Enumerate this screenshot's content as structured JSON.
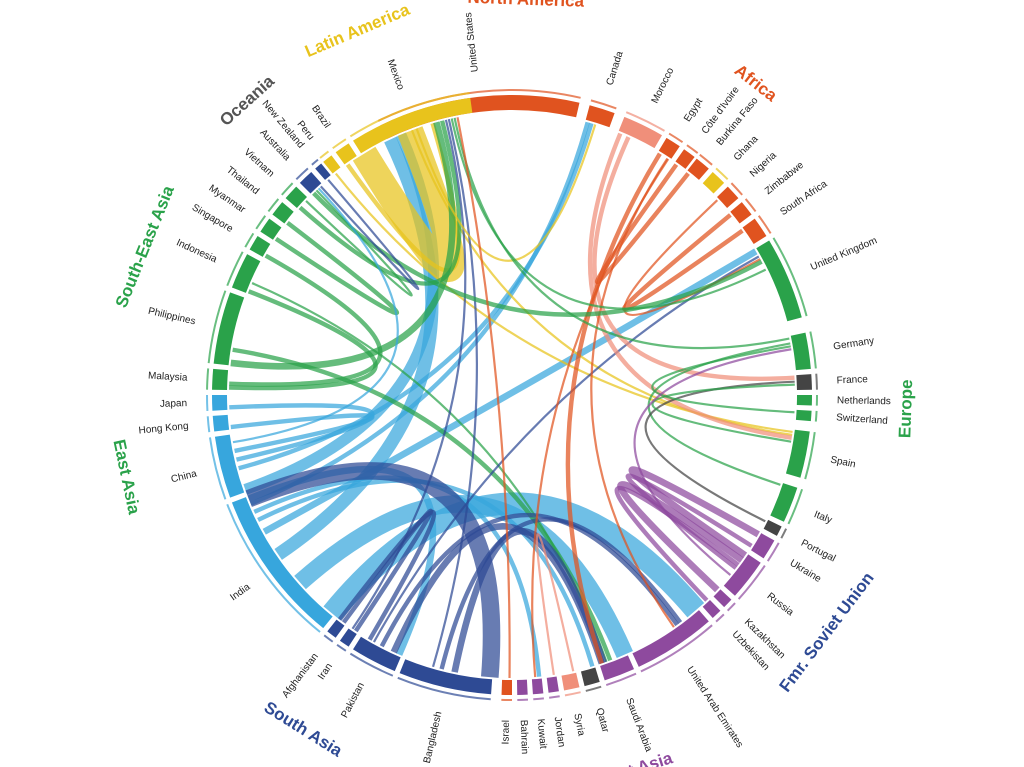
{
  "regions": [
    {
      "name": "North America",
      "color": "#e0531f"
    },
    {
      "name": "Africa",
      "color": "#e0531f"
    },
    {
      "name": "Europe",
      "color": "#2aa24a"
    },
    {
      "name": "Fmr. Soviet Union",
      "color": "#2e4a94"
    },
    {
      "name": "West Asia",
      "color": "#8e4a9e"
    },
    {
      "name": "South Asia",
      "color": "#2e4a94"
    },
    {
      "name": "East Asia",
      "color": "#2aa24a"
    },
    {
      "name": "South-East Asia",
      "color": "#2aa24a"
    },
    {
      "name": "Oceania",
      "color": "#555555"
    },
    {
      "name": "Latin America",
      "color": "#e8c31c"
    }
  ],
  "countries": [
    {
      "name": "United States",
      "color": "#e0531f"
    },
    {
      "name": "Canada",
      "color": "#e0531f"
    },
    {
      "name": "Morocco",
      "color": "#f08f7a"
    },
    {
      "name": "Egypt",
      "color": "#e0531f"
    },
    {
      "name": "Côte d'Ivoire",
      "color": "#e0531f"
    },
    {
      "name": "Burkina Faso",
      "color": "#e0531f"
    },
    {
      "name": "Ghana",
      "color": "#e8c31c"
    },
    {
      "name": "Nigeria",
      "color": "#e0531f"
    },
    {
      "name": "Zimbabwe",
      "color": "#e0531f"
    },
    {
      "name": "South Africa",
      "color": "#e0531f"
    },
    {
      "name": "United Kingdom",
      "color": "#2aa24a"
    },
    {
      "name": "Germany",
      "color": "#2aa24a"
    },
    {
      "name": "France",
      "color": "#444444"
    },
    {
      "name": "Netherlands",
      "color": "#2aa24a"
    },
    {
      "name": "Switzerland",
      "color": "#2aa24a"
    },
    {
      "name": "Spain",
      "color": "#2aa24a"
    },
    {
      "name": "Italy",
      "color": "#2aa24a"
    },
    {
      "name": "Portugal",
      "color": "#444444"
    },
    {
      "name": "Ukraine",
      "color": "#8e4a9e"
    },
    {
      "name": "Russia",
      "color": "#8e4a9e"
    },
    {
      "name": "Kazakhstan",
      "color": "#8e4a9e"
    },
    {
      "name": "Uzbekistan",
      "color": "#8e4a9e"
    },
    {
      "name": "United Arab Emirates",
      "color": "#8e4a9e"
    },
    {
      "name": "Saudi Arabia",
      "color": "#8e4a9e"
    },
    {
      "name": "Qatar",
      "color": "#444444"
    },
    {
      "name": "Syria",
      "color": "#f08f7a"
    },
    {
      "name": "Jordan",
      "color": "#8e4a9e"
    },
    {
      "name": "Kuwait",
      "color": "#8e4a9e"
    },
    {
      "name": "Bahrain",
      "color": "#8e4a9e"
    },
    {
      "name": "Israel",
      "color": "#e0531f"
    },
    {
      "name": "Bangladesh",
      "color": "#2e4a94"
    },
    {
      "name": "Pakistan",
      "color": "#2e4a94"
    },
    {
      "name": "Iran",
      "color": "#2e4a94"
    },
    {
      "name": "Afghanistan",
      "color": "#2e4a94"
    },
    {
      "name": "India",
      "color": "#37a6dd"
    },
    {
      "name": "China",
      "color": "#37a6dd"
    },
    {
      "name": "Hong Kong",
      "color": "#37a6dd"
    },
    {
      "name": "Japan",
      "color": "#37a6dd"
    },
    {
      "name": "Malaysia",
      "color": "#2aa24a"
    },
    {
      "name": "Philippines",
      "color": "#2aa24a"
    },
    {
      "name": "Indonesia",
      "color": "#2aa24a"
    },
    {
      "name": "Singapore",
      "color": "#2aa24a"
    },
    {
      "name": "Myanmar",
      "color": "#2aa24a"
    },
    {
      "name": "Thailand",
      "color": "#2aa24a"
    },
    {
      "name": "Vietnam",
      "color": "#2aa24a"
    },
    {
      "name": "Australia",
      "color": "#2e4a94"
    },
    {
      "name": "New Zealand",
      "color": "#2e4a94"
    },
    {
      "name": "Peru",
      "color": "#e8c31c"
    },
    {
      "name": "Brazil",
      "color": "#e8c31c"
    },
    {
      "name": "Mexico",
      "color": "#e8c31c"
    }
  ],
  "flows": [
    {
      "from": "India",
      "to": "United Arab Emirates",
      "value": 10,
      "color": "#37a6dd"
    },
    {
      "from": "India",
      "to": "Saudi Arabia",
      "value": 8,
      "color": "#37a6dd"
    },
    {
      "from": "India",
      "to": "United States",
      "value": 6,
      "color": "#37a6dd"
    },
    {
      "from": "India",
      "to": "United Kingdom",
      "value": 3,
      "color": "#37a6dd"
    },
    {
      "from": "India",
      "to": "Qatar",
      "value": 2,
      "color": "#37a6dd"
    },
    {
      "from": "India",
      "to": "Kuwait",
      "value": 2,
      "color": "#37a6dd"
    },
    {
      "from": "India",
      "to": "Canada",
      "value": 2,
      "color": "#37a6dd"
    },
    {
      "from": "India",
      "to": "Pakistan",
      "value": 3,
      "color": "#37a6dd"
    },
    {
      "from": "China",
      "to": "United States",
      "value": 5,
      "color": "#37a6dd"
    },
    {
      "from": "China",
      "to": "Canada",
      "value": 2,
      "color": "#37a6dd"
    },
    {
      "from": "China",
      "to": "Japan",
      "value": 2,
      "color": "#37a6dd"
    },
    {
      "from": "China",
      "to": "Hong Kong",
      "value": 2,
      "color": "#37a6dd"
    },
    {
      "from": "Mexico",
      "to": "United States",
      "value": 12,
      "color": "#e8c31c"
    },
    {
      "from": "Brazil",
      "to": "United States",
      "value": 2,
      "color": "#e8c31c"
    },
    {
      "from": "Peru",
      "to": "Spain",
      "value": 1,
      "color": "#e8c31c"
    },
    {
      "from": "Mexico",
      "to": "Spain",
      "value": 1,
      "color": "#e8c31c"
    },
    {
      "from": "Philippines",
      "to": "United States",
      "value": 3,
      "color": "#2aa24a"
    },
    {
      "from": "Philippines",
      "to": "Saudi Arabia",
      "value": 2,
      "color": "#2aa24a"
    },
    {
      "from": "Indonesia",
      "to": "Malaysia",
      "value": 2,
      "color": "#2aa24a"
    },
    {
      "from": "Indonesia",
      "to": "Saudi Arabia",
      "value": 1,
      "color": "#2aa24a"
    },
    {
      "from": "Myanmar",
      "to": "Thailand",
      "value": 2,
      "color": "#2aa24a"
    },
    {
      "from": "Vietnam",
      "to": "United States",
      "value": 2,
      "color": "#2aa24a"
    },
    {
      "from": "Malaysia",
      "to": "Singapore",
      "value": 2,
      "color": "#2aa24a"
    },
    {
      "from": "Bangladesh",
      "to": "India",
      "value": 8,
      "color": "#2e4a94"
    },
    {
      "from": "Bangladesh",
      "to": "Saudi Arabia",
      "value": 3,
      "color": "#2e4a94"
    },
    {
      "from": "Bangladesh",
      "to": "United Arab Emirates",
      "value": 2,
      "color": "#2e4a94"
    },
    {
      "from": "Pakistan",
      "to": "Saudi Arabia",
      "value": 3,
      "color": "#2e4a94"
    },
    {
      "from": "Pakistan",
      "to": "United Arab Emirates",
      "value": 2,
      "color": "#2e4a94"
    },
    {
      "from": "Pakistan",
      "to": "United Kingdom",
      "value": 1,
      "color": "#2e4a94"
    },
    {
      "from": "Afghanistan",
      "to": "Iran",
      "value": 2,
      "color": "#2e4a94"
    },
    {
      "from": "Afghanistan",
      "to": "Pakistan",
      "value": 2,
      "color": "#2e4a94"
    },
    {
      "from": "Iran",
      "to": "United States",
      "value": 1,
      "color": "#2e4a94"
    },
    {
      "from": "Bangladesh",
      "to": "United States",
      "value": 1,
      "color": "#2e4a94"
    },
    {
      "from": "Ukraine",
      "to": "Russia",
      "value": 3,
      "color": "#8e4a9e"
    },
    {
      "from": "Kazakhstan",
      "to": "Russia",
      "value": 3,
      "color": "#8e4a9e"
    },
    {
      "from": "Uzbekistan",
      "to": "Russia",
      "value": 2,
      "color": "#8e4a9e"
    },
    {
      "from": "Russia",
      "to": "Ukraine",
      "value": 2,
      "color": "#8e4a9e"
    },
    {
      "from": "Mexico",
      "to": "Canada",
      "value": 1,
      "color": "#e8c31c"
    },
    {
      "from": "Morocco",
      "to": "Spain",
      "value": 2,
      "color": "#f08f7a"
    },
    {
      "from": "Morocco",
      "to": "France",
      "value": 2,
      "color": "#f08f7a"
    },
    {
      "from": "Egypt",
      "to": "Saudi Arabia",
      "value": 2,
      "color": "#e0531f"
    },
    {
      "from": "Egypt",
      "to": "United Arab Emirates",
      "value": 1,
      "color": "#e0531f"
    },
    {
      "from": "Burkina Faso",
      "to": "Côte d'Ivoire",
      "value": 2,
      "color": "#e0531f"
    },
    {
      "from": "Zimbabwe",
      "to": "South Africa",
      "value": 2,
      "color": "#e0531f"
    },
    {
      "from": "Nigeria",
      "to": "United Kingdom",
      "value": 1,
      "color": "#e0531f"
    },
    {
      "from": "Syria",
      "to": "Jordan",
      "value": 1,
      "color": "#f08f7a"
    },
    {
      "from": "Egypt",
      "to": "Kuwait",
      "value": 1,
      "color": "#e0531f"
    },
    {
      "from": "United Kingdom",
      "to": "Australia",
      "value": 2,
      "color": "#2aa24a"
    },
    {
      "from": "United Kingdom",
      "to": "United States",
      "value": 1,
      "color": "#2aa24a"
    },
    {
      "from": "Germany",
      "to": "United States",
      "value": 1,
      "color": "#2aa24a"
    },
    {
      "from": "Italy",
      "to": "Germany",
      "value": 1,
      "color": "#2aa24a"
    },
    {
      "from": "Portugal",
      "to": "France",
      "value": 1,
      "color": "#444444"
    },
    {
      "from": "Spain",
      "to": "France",
      "value": 1,
      "color": "#2aa24a"
    },
    {
      "from": "Switzerland",
      "to": "Germany",
      "value": 1,
      "color": "#2aa24a"
    },
    {
      "from": "Vietnam",
      "to": "Australia",
      "value": 1,
      "color": "#2aa24a"
    },
    {
      "from": "China",
      "to": "Australia",
      "value": 1,
      "color": "#37a6dd"
    },
    {
      "from": "New Zealand",
      "to": "Australia",
      "value": 1,
      "color": "#2e4a94"
    },
    {
      "from": "Israel",
      "to": "United States",
      "value": 1,
      "color": "#e0531f"
    },
    {
      "from": "Russia",
      "to": "Germany",
      "value": 1,
      "color": "#8e4a9e"
    }
  ]
}
